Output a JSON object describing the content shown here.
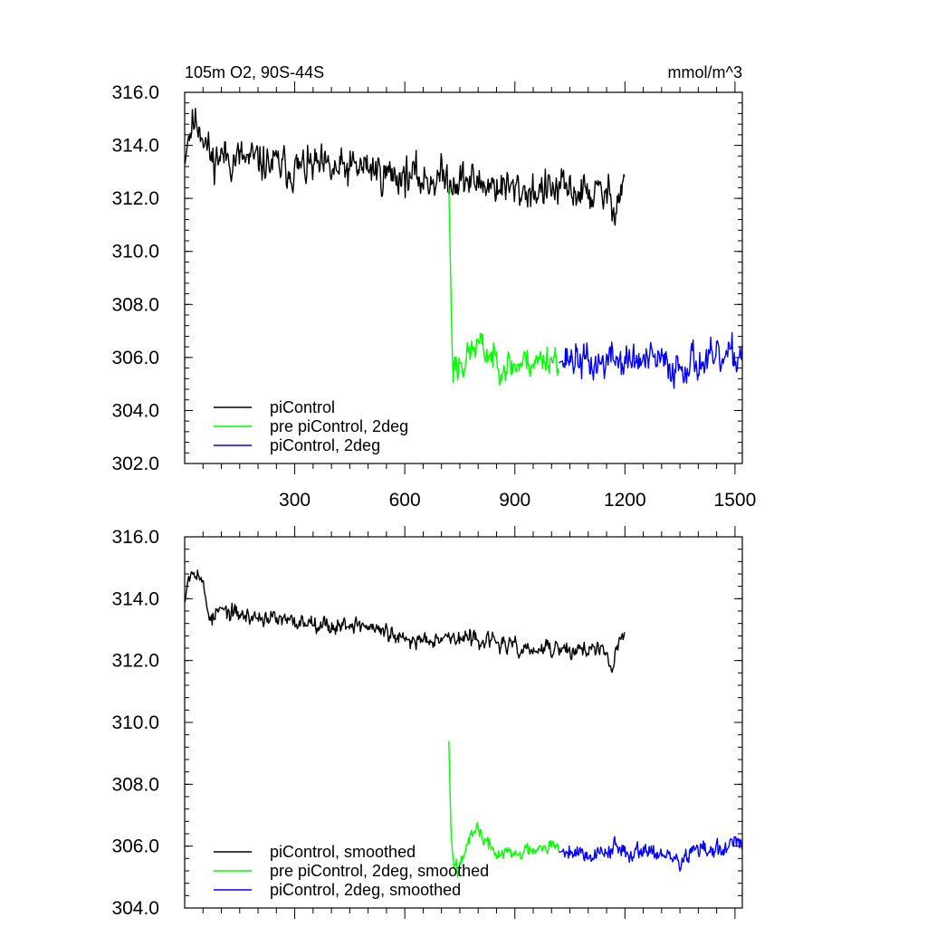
{
  "chart_data": [
    {
      "type": "line",
      "title_left": "105m O2, 90S-44S",
      "title_right": "mmol/m^3",
      "xlabel": "",
      "ylabel": "",
      "xlim": [
        0,
        1520
      ],
      "ylim": [
        302,
        316
      ],
      "yticks": [
        302,
        304,
        306,
        308,
        310,
        312,
        314,
        316
      ],
      "ytick_labels": [
        "302.0",
        "304.0",
        "306.0",
        "308.0",
        "310.0",
        "312.0",
        "314.0",
        "316.0"
      ],
      "xticks": [
        300,
        600,
        900,
        1200,
        1500
      ],
      "xtick_labels": [
        "300",
        "600",
        "900",
        "1200",
        "1500"
      ],
      "legend_position": "bottom-left",
      "series": [
        {
          "name": "piControl",
          "color": "#000000",
          "seed": 11,
          "noise": 0.75,
          "x": [
            1,
            10,
            20,
            30,
            40,
            50,
            60,
            75,
            90,
            110,
            130,
            150,
            175,
            200,
            230,
            260,
            300,
            350,
            400,
            450,
            500,
            550,
            600,
            650,
            700,
            750,
            800,
            850,
            900,
            950,
            1000,
            1050,
            1100,
            1150,
            1175,
            1200
          ],
          "y": [
            313.3,
            314.3,
            314.8,
            314.9,
            314.8,
            314.5,
            314.0,
            313.4,
            313.6,
            313.6,
            313.5,
            313.5,
            313.4,
            313.4,
            313.3,
            313.2,
            313.1,
            313.2,
            313.0,
            313.1,
            313.2,
            312.9,
            312.9,
            312.7,
            312.8,
            312.7,
            312.6,
            312.5,
            312.3,
            312.3,
            312.3,
            312.3,
            312.2,
            312.1,
            311.8,
            312.8
          ]
        },
        {
          "name": "pre piControl, 2deg",
          "color": "#00ff00",
          "seed": 23,
          "noise": 0.6,
          "x": [
            720,
            722,
            725,
            728,
            730,
            732,
            735,
            740,
            745,
            750,
            760,
            780,
            800,
            820,
            840,
            860,
            880,
            900,
            920,
            940,
            960,
            980,
            1000,
            1020
          ],
          "y": [
            312.4,
            311.2,
            309.0,
            307.0,
            306.0,
            305.6,
            305.7,
            305.9,
            305.3,
            306.0,
            305.8,
            306.2,
            306.5,
            306.2,
            306.0,
            305.8,
            305.7,
            305.7,
            305.8,
            305.9,
            305.8,
            306.0,
            306.0,
            306.0
          ]
        },
        {
          "name": "piControl, 2deg",
          "color": "#0000ff",
          "seed": 37,
          "noise": 0.7,
          "x": [
            1020,
            1050,
            1080,
            1110,
            1140,
            1170,
            1200,
            1230,
            1260,
            1290,
            1320,
            1350,
            1380,
            1410,
            1440,
            1470,
            1500,
            1520
          ],
          "y": [
            305.8,
            306.0,
            305.9,
            305.7,
            305.8,
            306.0,
            305.8,
            305.9,
            305.8,
            305.9,
            305.6,
            305.7,
            305.9,
            305.8,
            305.8,
            305.9,
            306.0,
            306.3
          ]
        }
      ]
    },
    {
      "type": "line",
      "xlim": [
        0,
        1520
      ],
      "ylim": [
        304,
        316
      ],
      "yticks": [
        304,
        306,
        308,
        310,
        312,
        314,
        316
      ],
      "ytick_labels": [
        "304.0",
        "306.0",
        "308.0",
        "310.0",
        "312.0",
        "314.0",
        "316.0"
      ],
      "xticks": [
        300,
        600,
        900,
        1200,
        1500
      ],
      "legend_position": "bottom-left",
      "series": [
        {
          "name": "piControl, smoothed",
          "color": "#000000",
          "seed": 53,
          "noise": 0.28,
          "x": [
            1,
            10,
            20,
            30,
            40,
            50,
            60,
            75,
            90,
            110,
            130,
            150,
            175,
            200,
            230,
            260,
            300,
            350,
            400,
            450,
            500,
            550,
            600,
            650,
            700,
            750,
            800,
            850,
            900,
            950,
            1000,
            1050,
            1100,
            1150,
            1165,
            1175,
            1200
          ],
          "y": [
            313.9,
            314.7,
            314.9,
            315.0,
            314.8,
            314.4,
            313.8,
            313.3,
            313.6,
            313.6,
            313.5,
            313.5,
            313.4,
            313.4,
            313.4,
            313.3,
            313.2,
            313.3,
            313.1,
            313.2,
            313.1,
            312.9,
            312.6,
            312.7,
            312.8,
            312.7,
            312.7,
            312.6,
            312.4,
            312.3,
            312.4,
            312.3,
            312.4,
            312.2,
            311.6,
            312.3,
            313.0
          ]
        },
        {
          "name": "pre piControl, 2deg, smoothed",
          "color": "#00ff00",
          "seed": 67,
          "noise": 0.25,
          "x": [
            720,
            723,
            726,
            730,
            735,
            740,
            745,
            750,
            760,
            780,
            800,
            820,
            840,
            860,
            880,
            900,
            920,
            940,
            960,
            980,
            1000,
            1020
          ],
          "y": [
            309.4,
            308.0,
            306.5,
            305.8,
            305.4,
            305.5,
            305.2,
            305.7,
            305.8,
            306.2,
            306.6,
            306.1,
            305.9,
            305.7,
            305.8,
            305.7,
            305.8,
            305.9,
            306.0,
            306.1,
            306.0,
            305.9
          ]
        },
        {
          "name": "piControl, 2deg, smoothed",
          "color": "#0000ff",
          "seed": 79,
          "noise": 0.3,
          "x": [
            1020,
            1050,
            1080,
            1110,
            1140,
            1170,
            1200,
            1230,
            1260,
            1290,
            1320,
            1350,
            1380,
            1410,
            1440,
            1470,
            1500,
            1520
          ],
          "y": [
            305.8,
            305.9,
            305.8,
            305.7,
            305.8,
            306.0,
            305.7,
            305.9,
            305.9,
            305.8,
            305.6,
            305.5,
            305.8,
            305.9,
            305.8,
            305.9,
            306.1,
            305.9
          ]
        }
      ]
    }
  ]
}
